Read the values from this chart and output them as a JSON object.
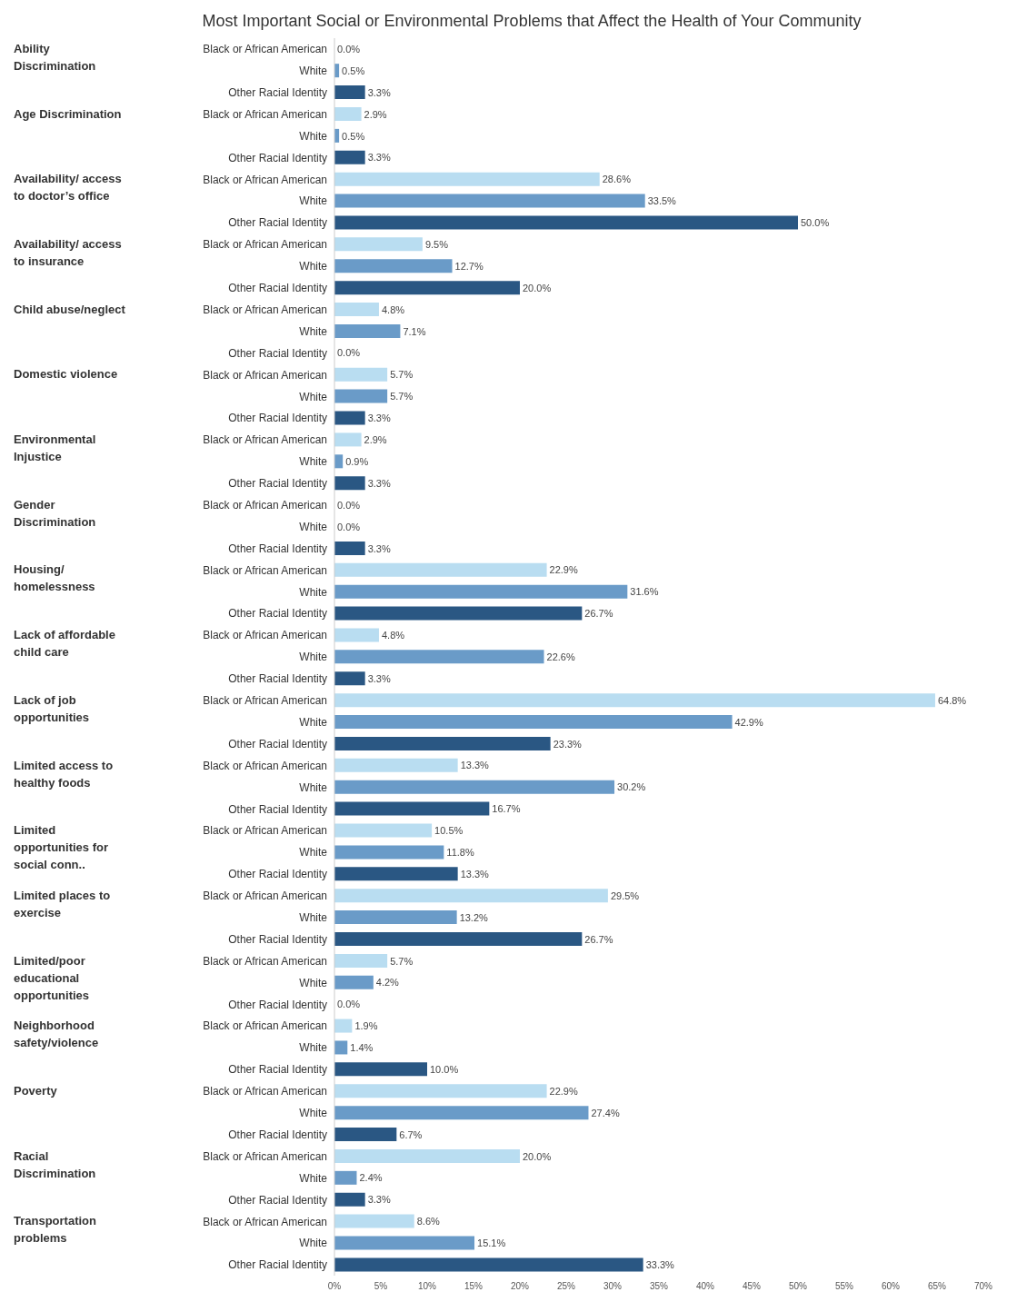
{
  "chart_data": {
    "type": "bar",
    "orientation": "horizontal",
    "title": "Most Important Social or Environmental Problems that Affect the Health of Your Community",
    "categories": [
      "Black or African American",
      "White",
      "Other Racial Identity",
      "Black or African American",
      "White",
      "Other Racial Identity",
      "Black or African American",
      "White",
      "Other Racial Identity",
      "Black or African American",
      "White",
      "Other Racial Identity",
      "Black or African American",
      "White",
      "Other Racial Identity",
      "Black or African American",
      "White",
      "Other Racial Identity",
      "Black or African American",
      "White",
      "Other Racial Identity",
      "Black or African American",
      "White",
      "Other Racial Identity",
      "Black or African American",
      "White",
      "Other Racial Identity",
      "Black or African American",
      "White",
      "Other Racial Identity",
      "Black or African American",
      "White",
      "Other Racial Identity",
      "Black or African American",
      "White",
      "Other Racial Identity",
      "Black or African American",
      "White",
      "Other Racial Identity",
      "Black or African American",
      "White",
      "Other Racial Identity",
      "Black or African American",
      "White",
      "Other Racial Identity",
      "Black or African American",
      "White",
      "Other Racial Identity",
      "Black or African American",
      "White",
      "Other Racial Identity",
      "Black or African American",
      "White",
      "Other Racial Identity",
      "Black or African American",
      "White",
      "Other Racial Identity"
    ],
    "values": [
      0.0,
      0.5,
      3.3,
      2.9,
      0.5,
      3.3,
      28.6,
      33.5,
      50.0,
      9.5,
      12.7,
      20.0,
      4.8,
      7.1,
      0.0,
      5.7,
      5.7,
      3.3,
      2.9,
      0.9,
      3.3,
      0.0,
      0.0,
      3.3,
      22.9,
      31.6,
      26.7,
      4.8,
      22.6,
      3.3,
      64.8,
      42.9,
      23.3,
      13.3,
      30.2,
      16.7,
      10.5,
      11.8,
      13.3,
      29.5,
      13.2,
      26.7,
      5.7,
      4.2,
      0.0,
      1.9,
      1.4,
      10.0,
      22.9,
      27.4,
      6.7,
      20.0,
      2.4,
      3.3,
      8.6,
      15.1,
      33.3
    ],
    "value_labels": [
      "0.0%",
      "0.5%",
      "3.3%",
      "2.9%",
      "0.5%",
      "3.3%",
      "28.6%",
      "33.5%",
      "50.0%",
      "9.5%",
      "12.7%",
      "20.0%",
      "4.8%",
      "7.1%",
      "0.0%",
      "5.7%",
      "5.7%",
      "3.3%",
      "2.9%",
      "0.9%",
      "3.3%",
      "0.0%",
      "0.0%",
      "3.3%",
      "22.9%",
      "31.6%",
      "26.7%",
      "4.8%",
      "22.6%",
      "3.3%",
      "64.8%",
      "42.9%",
      "23.3%",
      "13.3%",
      "30.2%",
      "16.7%",
      "10.5%",
      "11.8%",
      "13.3%",
      "29.5%",
      "13.2%",
      "26.7%",
      "5.7%",
      "4.2%",
      "0.0%",
      "1.9%",
      "1.4%",
      "10.0%",
      "22.9%",
      "27.4%",
      "6.7%",
      "20.0%",
      "2.4%",
      "3.3%",
      "8.6%",
      "15.1%",
      "33.3%"
    ],
    "colors": [
      "#b9ddf1",
      "#6a9bc8",
      "#2a5783",
      "#b9ddf1",
      "#6a9bc8",
      "#2a5783",
      "#b9ddf1",
      "#6a9bc8",
      "#2a5783",
      "#b9ddf1",
      "#6a9bc8",
      "#2a5783",
      "#b9ddf1",
      "#6a9bc8",
      "#2a5783",
      "#b9ddf1",
      "#6a9bc8",
      "#2a5783",
      "#b9ddf1",
      "#6a9bc8",
      "#2a5783",
      "#b9ddf1",
      "#6a9bc8",
      "#2a5783",
      "#b9ddf1",
      "#6a9bc8",
      "#2a5783",
      "#b9ddf1",
      "#6a9bc8",
      "#2a5783",
      "#b9ddf1",
      "#6a9bc8",
      "#2a5783",
      "#b9ddf1",
      "#6a9bc8",
      "#2a5783",
      "#b9ddf1",
      "#6a9bc8",
      "#2a5783",
      "#b9ddf1",
      "#6a9bc8",
      "#2a5783",
      "#b9ddf1",
      "#6a9bc8",
      "#2a5783",
      "#b9ddf1",
      "#6a9bc8",
      "#2a5783",
      "#b9ddf1",
      "#6a9bc8",
      "#2a5783",
      "#b9ddf1",
      "#6a9bc8",
      "#2a5783",
      "#b9ddf1",
      "#6a9bc8",
      "#2a5783"
    ],
    "annotations": [
      "Ability Discrimination",
      "Age Discrimination",
      "Availability/ access to doctor’s office",
      "Availability/ access to insurance",
      "Child abuse/neglect",
      "Domestic violence",
      "Environmental Injustice",
      "Gender Discrimination",
      "Housing/ homelessness",
      "Lack of affordable child care",
      "Lack of job opportunities",
      "Limited access to healthy foods",
      "Limited opportunities for social conn..",
      "Limited places to exercise",
      "Limited/poor educational opportunities",
      "Neighborhood safety/violence",
      "Poverty",
      "Racial Discrimination",
      "Transportation problems"
    ],
    "xlim": [
      0,
      70
    ],
    "xticks": [
      {
        "value": 0,
        "label": "0%"
      },
      {
        "value": 5,
        "label": "5%"
      },
      {
        "value": 10,
        "label": "10%"
      },
      {
        "value": 15,
        "label": "15%"
      },
      {
        "value": 20,
        "label": "20%"
      },
      {
        "value": 25,
        "label": "25%"
      },
      {
        "value": 30,
        "label": "30%"
      },
      {
        "value": 35,
        "label": "35%"
      },
      {
        "value": 40,
        "label": "40%"
      },
      {
        "value": 45,
        "label": "45%"
      },
      {
        "value": 50,
        "label": "50%"
      },
      {
        "value": 55,
        "label": "55%"
      },
      {
        "value": 60,
        "label": "60%"
      },
      {
        "value": 65,
        "label": "65%"
      },
      {
        "value": 70,
        "label": "70%"
      }
    ],
    "legend": false
  }
}
